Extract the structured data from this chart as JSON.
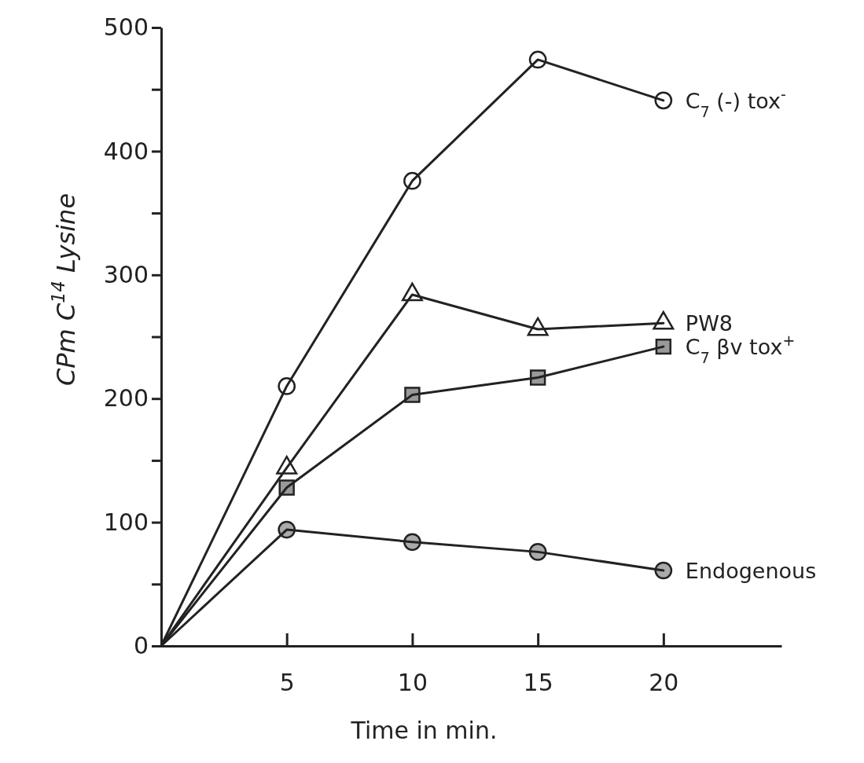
{
  "chart_data": {
    "type": "line",
    "xlabel": "Time in min.",
    "ylabel": "CPm C$^{14}$ Lysine",
    "xlim": [
      0,
      24.7
    ],
    "ylim": [
      0,
      500
    ],
    "xticks": [
      5,
      10,
      15,
      20
    ],
    "yticks": [
      0,
      {
        "value": 50,
        "label": null
      },
      100,
      {
        "value": 150,
        "label": null
      },
      200,
      {
        "value": 250,
        "label": null
      },
      300,
      {
        "value": 350,
        "label": null
      },
      400,
      {
        "value": 450,
        "label": null
      },
      500
    ],
    "grid": false,
    "legend": false,
    "line_style": "solid",
    "series": [
      {
        "name": "C$_{7}$ (-) tox$^{-}$",
        "color": "#ffffff",
        "marker": "circle",
        "x": [
          0,
          5,
          10,
          15,
          20
        ],
        "values": [
          0,
          210,
          376,
          474,
          441
        ]
      },
      {
        "name": "PW8",
        "color": "#ffffff",
        "marker": "triangle",
        "x": [
          0,
          5,
          10,
          15,
          20
        ],
        "values": [
          0,
          144,
          284,
          256,
          261
        ]
      },
      {
        "name": "C$_{7}$ βv tox$^{+}$",
        "color": "#999999",
        "marker": "square",
        "x": [
          0,
          5,
          10,
          15,
          20
        ],
        "values": [
          0,
          128,
          203,
          217,
          242
        ]
      },
      {
        "name": "Endogenous",
        "color": "#aaaaaa",
        "marker": "circle",
        "x": [
          0,
          5,
          10,
          15,
          20
        ],
        "values": [
          0,
          94,
          84,
          76,
          61
        ]
      }
    ]
  }
}
